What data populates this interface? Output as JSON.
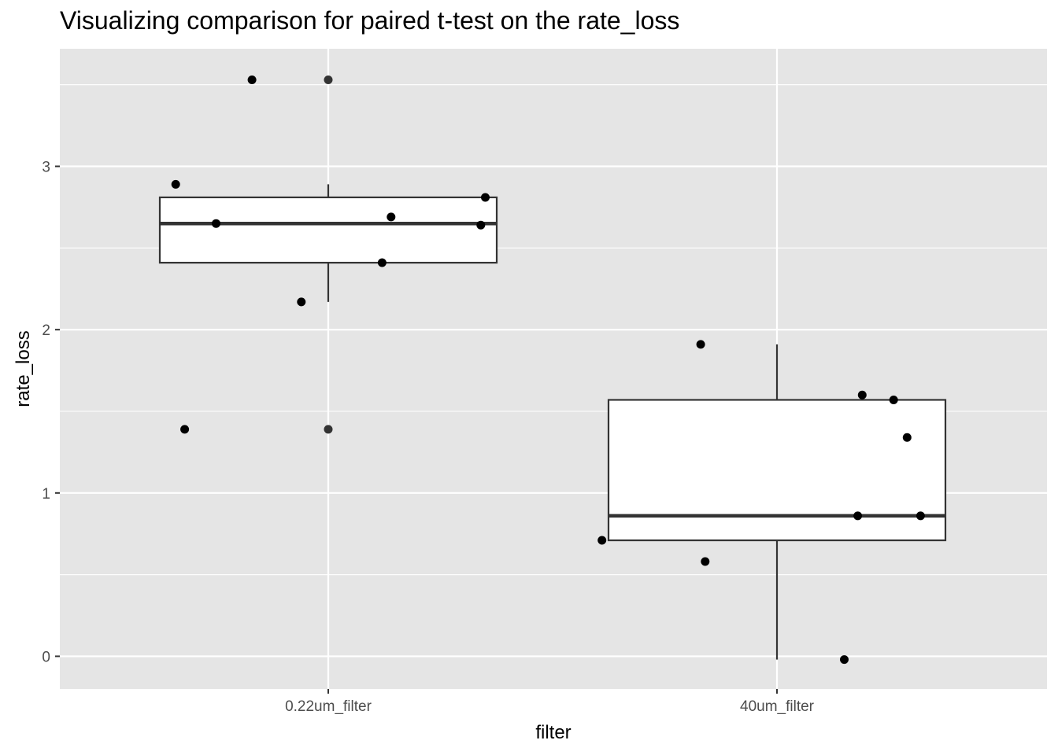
{
  "chart_data": {
    "type": "box",
    "title": "Visualizing comparison for paired t-test on the rate_loss",
    "xlabel": "filter",
    "ylabel": "rate_loss",
    "ylim": [
      -0.2,
      3.72
    ],
    "y_ticks": [
      0,
      1,
      2,
      3
    ],
    "y_tick_labels": [
      "0",
      "1",
      "2",
      "3"
    ],
    "categories": [
      "0.22um_filter",
      "40um_filter"
    ],
    "grid": true,
    "panel_background": "#e5e5e5",
    "grid_color": "#ffffff",
    "box_fill": "#ffffff",
    "box_stroke": "#333333",
    "point_color": "#000000",
    "boxes": [
      {
        "category": "0.22um_filter",
        "lower_whisker": 2.17,
        "q1": 2.41,
        "median": 2.65,
        "q3": 2.81,
        "upper_whisker": 2.89,
        "outliers": [
          3.53,
          1.39
        ]
      },
      {
        "category": "40um_filter",
        "lower_whisker": -0.02,
        "q1": 0.71,
        "median": 0.86,
        "q3": 1.57,
        "upper_whisker": 1.91,
        "outliers": []
      }
    ],
    "points": [
      {
        "category": "0.22um_filter",
        "jitter": -0.34,
        "y": 2.89
      },
      {
        "category": "0.22um_filter",
        "jitter": -0.32,
        "y": 1.39
      },
      {
        "category": "0.22um_filter",
        "jitter": -0.25,
        "y": 2.65
      },
      {
        "category": "0.22um_filter",
        "jitter": -0.17,
        "y": 3.53
      },
      {
        "category": "0.22um_filter",
        "jitter": -0.06,
        "y": 2.17
      },
      {
        "category": "0.22um_filter",
        "jitter": 0.12,
        "y": 2.41
      },
      {
        "category": "0.22um_filter",
        "jitter": 0.14,
        "y": 2.69
      },
      {
        "category": "0.22um_filter",
        "jitter": 0.34,
        "y": 2.64
      },
      {
        "category": "0.22um_filter",
        "jitter": 0.35,
        "y": 2.81
      },
      {
        "category": "40um_filter",
        "jitter": -0.39,
        "y": 0.71
      },
      {
        "category": "40um_filter",
        "jitter": -0.17,
        "y": 1.91
      },
      {
        "category": "40um_filter",
        "jitter": -0.16,
        "y": 0.58
      },
      {
        "category": "40um_filter",
        "jitter": 0.15,
        "y": -0.02
      },
      {
        "category": "40um_filter",
        "jitter": 0.18,
        "y": 0.86
      },
      {
        "category": "40um_filter",
        "jitter": 0.19,
        "y": 1.6
      },
      {
        "category": "40um_filter",
        "jitter": 0.26,
        "y": 1.57
      },
      {
        "category": "40um_filter",
        "jitter": 0.29,
        "y": 1.34
      },
      {
        "category": "40um_filter",
        "jitter": 0.32,
        "y": 0.86
      }
    ]
  }
}
